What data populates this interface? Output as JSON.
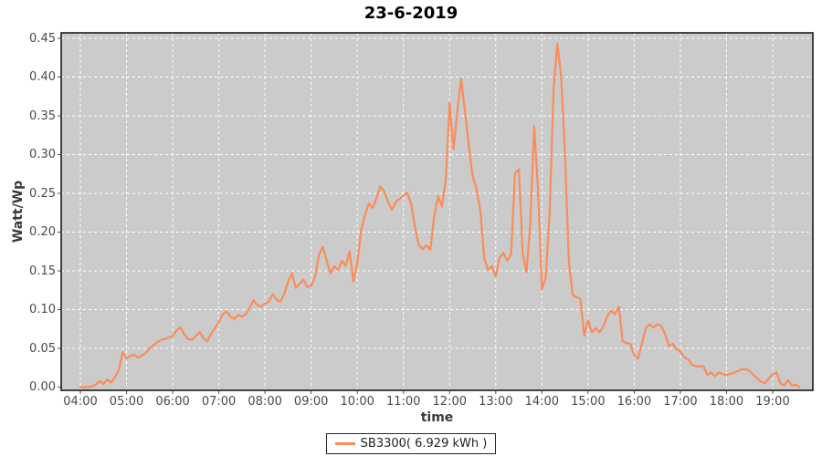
{
  "colors": {
    "line": "#fa8c5a",
    "plot_background": "#cbcbcb",
    "gridline": "#ffffff",
    "plot_border": "#1a1a1a",
    "tick": "#555555",
    "tick_label": "#4a4a4a"
  },
  "chart_data": {
    "type": "line",
    "title": "23-6-2019",
    "xlabel": "time",
    "ylabel": "Watt/Wp",
    "x_tick_labels": [
      "04:00",
      "05:00",
      "06:00",
      "07:00",
      "08:00",
      "09:00",
      "10:00",
      "11:00",
      "12:00",
      "13:00",
      "14:00",
      "15:00",
      "16:00",
      "17:00",
      "18:00",
      "19:00"
    ],
    "y_tick_labels": [
      "0.00",
      "0.05",
      "0.10",
      "0.15",
      "0.20",
      "0.25",
      "0.30",
      "0.35",
      "0.40",
      "0.45"
    ],
    "x_range_hours": [
      3.58,
      19.87
    ],
    "y_range": [
      0,
      0.4575
    ],
    "grid": "dashed-white-on-gray",
    "legend_position": "bottom-center",
    "series": [
      {
        "name": "SB3300( 6.929 kWh )",
        "color": "#fa8c5a",
        "points": [
          [
            "04:00",
            0.0
          ],
          [
            "04:05",
            0.0
          ],
          [
            "04:10",
            0.0
          ],
          [
            "04:15",
            0.001
          ],
          [
            "04:20",
            0.003
          ],
          [
            "04:25",
            0.008
          ],
          [
            "04:30",
            0.004
          ],
          [
            "04:35",
            0.01
          ],
          [
            "04:40",
            0.006
          ],
          [
            "04:45",
            0.013
          ],
          [
            "04:50",
            0.022
          ],
          [
            "04:55",
            0.045
          ],
          [
            "05:00",
            0.037
          ],
          [
            "05:05",
            0.04
          ],
          [
            "05:10",
            0.042
          ],
          [
            "05:15",
            0.038
          ],
          [
            "05:20",
            0.041
          ],
          [
            "05:25",
            0.044
          ],
          [
            "05:30",
            0.05
          ],
          [
            "05:35",
            0.054
          ],
          [
            "05:40",
            0.058
          ],
          [
            "05:45",
            0.061
          ],
          [
            "05:50",
            0.062
          ],
          [
            "05:55",
            0.064
          ],
          [
            "06:00",
            0.066
          ],
          [
            "06:05",
            0.073
          ],
          [
            "06:10",
            0.077
          ],
          [
            "06:15",
            0.068
          ],
          [
            "06:20",
            0.062
          ],
          [
            "06:25",
            0.061
          ],
          [
            "06:30",
            0.066
          ],
          [
            "06:35",
            0.071
          ],
          [
            "06:40",
            0.063
          ],
          [
            "06:45",
            0.059
          ],
          [
            "06:50",
            0.069
          ],
          [
            "06:55",
            0.076
          ],
          [
            "07:00",
            0.084
          ],
          [
            "07:05",
            0.094
          ],
          [
            "07:10",
            0.098
          ],
          [
            "07:15",
            0.091
          ],
          [
            "07:20",
            0.088
          ],
          [
            "07:25",
            0.093
          ],
          [
            "07:30",
            0.091
          ],
          [
            "07:35",
            0.094
          ],
          [
            "07:40",
            0.102
          ],
          [
            "07:45",
            0.112
          ],
          [
            "07:50",
            0.106
          ],
          [
            "07:55",
            0.104
          ],
          [
            "08:00",
            0.108
          ],
          [
            "08:05",
            0.11
          ],
          [
            "08:10",
            0.12
          ],
          [
            "08:15",
            0.113
          ],
          [
            "08:20",
            0.11
          ],
          [
            "08:25",
            0.12
          ],
          [
            "08:30",
            0.136
          ],
          [
            "08:35",
            0.147
          ],
          [
            "08:40",
            0.128
          ],
          [
            "08:45",
            0.133
          ],
          [
            "08:50",
            0.139
          ],
          [
            "08:55",
            0.129
          ],
          [
            "09:00",
            0.131
          ],
          [
            "09:05",
            0.142
          ],
          [
            "09:10",
            0.17
          ],
          [
            "09:15",
            0.181
          ],
          [
            "09:20",
            0.164
          ],
          [
            "09:25",
            0.147
          ],
          [
            "09:30",
            0.156
          ],
          [
            "09:35",
            0.151
          ],
          [
            "09:40",
            0.163
          ],
          [
            "09:45",
            0.156
          ],
          [
            "09:50",
            0.175
          ],
          [
            "09:55",
            0.136
          ],
          [
            "10:00",
            0.16
          ],
          [
            "10:05",
            0.202
          ],
          [
            "10:10",
            0.222
          ],
          [
            "10:15",
            0.237
          ],
          [
            "10:20",
            0.231
          ],
          [
            "10:25",
            0.244
          ],
          [
            "10:30",
            0.259
          ],
          [
            "10:35",
            0.252
          ],
          [
            "10:40",
            0.239
          ],
          [
            "10:45",
            0.229
          ],
          [
            "10:50",
            0.239
          ],
          [
            "10:55",
            0.243
          ],
          [
            "11:00",
            0.247
          ],
          [
            "11:05",
            0.251
          ],
          [
            "11:10",
            0.236
          ],
          [
            "11:15",
            0.206
          ],
          [
            "11:20",
            0.183
          ],
          [
            "11:25",
            0.178
          ],
          [
            "11:30",
            0.183
          ],
          [
            "11:35",
            0.177
          ],
          [
            "11:40",
            0.221
          ],
          [
            "11:45",
            0.246
          ],
          [
            "11:50",
            0.233
          ],
          [
            "11:55",
            0.268
          ],
          [
            "12:00",
            0.367
          ],
          [
            "12:05",
            0.307
          ],
          [
            "12:10",
            0.356
          ],
          [
            "12:15",
            0.398
          ],
          [
            "12:20",
            0.356
          ],
          [
            "12:25",
            0.311
          ],
          [
            "12:30",
            0.272
          ],
          [
            "12:35",
            0.256
          ],
          [
            "12:40",
            0.227
          ],
          [
            "12:45",
            0.166
          ],
          [
            "12:50",
            0.151
          ],
          [
            "12:55",
            0.156
          ],
          [
            "13:00",
            0.143
          ],
          [
            "13:05",
            0.167
          ],
          [
            "13:10",
            0.173
          ],
          [
            "13:15",
            0.163
          ],
          [
            "13:20",
            0.172
          ],
          [
            "13:25",
            0.276
          ],
          [
            "13:30",
            0.281
          ],
          [
            "13:35",
            0.172
          ],
          [
            "13:40",
            0.148
          ],
          [
            "13:45",
            0.214
          ],
          [
            "13:50",
            0.336
          ],
          [
            "13:55",
            0.255
          ],
          [
            "14:00",
            0.126
          ],
          [
            "14:05",
            0.141
          ],
          [
            "14:10",
            0.224
          ],
          [
            "14:15",
            0.382
          ],
          [
            "14:20",
            0.443
          ],
          [
            "14:25",
            0.401
          ],
          [
            "14:30",
            0.302
          ],
          [
            "14:35",
            0.163
          ],
          [
            "14:40",
            0.119
          ],
          [
            "14:45",
            0.116
          ],
          [
            "14:50",
            0.114
          ],
          [
            "14:55",
            0.066
          ],
          [
            "15:00",
            0.086
          ],
          [
            "15:05",
            0.071
          ],
          [
            "15:10",
            0.076
          ],
          [
            "15:15",
            0.071
          ],
          [
            "15:20",
            0.079
          ],
          [
            "15:25",
            0.091
          ],
          [
            "15:30",
            0.099
          ],
          [
            "15:35",
            0.094
          ],
          [
            "15:40",
            0.104
          ],
          [
            "15:45",
            0.059
          ],
          [
            "15:50",
            0.057
          ],
          [
            "15:55",
            0.056
          ],
          [
            "16:00",
            0.041
          ],
          [
            "16:05",
            0.037
          ],
          [
            "16:10",
            0.056
          ],
          [
            "16:15",
            0.076
          ],
          [
            "16:20",
            0.081
          ],
          [
            "16:25",
            0.077
          ],
          [
            "16:30",
            0.081
          ],
          [
            "16:35",
            0.079
          ],
          [
            "16:40",
            0.069
          ],
          [
            "16:45",
            0.053
          ],
          [
            "16:50",
            0.056
          ],
          [
            "16:55",
            0.049
          ],
          [
            "17:00",
            0.046
          ],
          [
            "17:05",
            0.039
          ],
          [
            "17:10",
            0.036
          ],
          [
            "17:15",
            0.029
          ],
          [
            "17:20",
            0.027
          ],
          [
            "17:25",
            0.027
          ],
          [
            "17:30",
            0.027
          ],
          [
            "17:35",
            0.016
          ],
          [
            "17:40",
            0.019
          ],
          [
            "17:45",
            0.014
          ],
          [
            "17:50",
            0.019
          ],
          [
            "17:55",
            0.017
          ],
          [
            "18:00",
            0.016
          ],
          [
            "18:05",
            0.017
          ],
          [
            "18:10",
            0.019
          ],
          [
            "18:15",
            0.021
          ],
          [
            "18:20",
            0.023
          ],
          [
            "18:25",
            0.023
          ],
          [
            "18:30",
            0.021
          ],
          [
            "18:35",
            0.016
          ],
          [
            "18:40",
            0.011
          ],
          [
            "18:45",
            0.007
          ],
          [
            "18:50",
            0.005
          ],
          [
            "18:55",
            0.011
          ],
          [
            "19:00",
            0.017
          ],
          [
            "19:05",
            0.019
          ],
          [
            "19:10",
            0.005
          ],
          [
            "19:15",
            0.002
          ],
          [
            "19:20",
            0.009
          ],
          [
            "19:25",
            0.002
          ],
          [
            "19:30",
            0.003
          ],
          [
            "19:35",
            0.0
          ]
        ]
      }
    ]
  }
}
